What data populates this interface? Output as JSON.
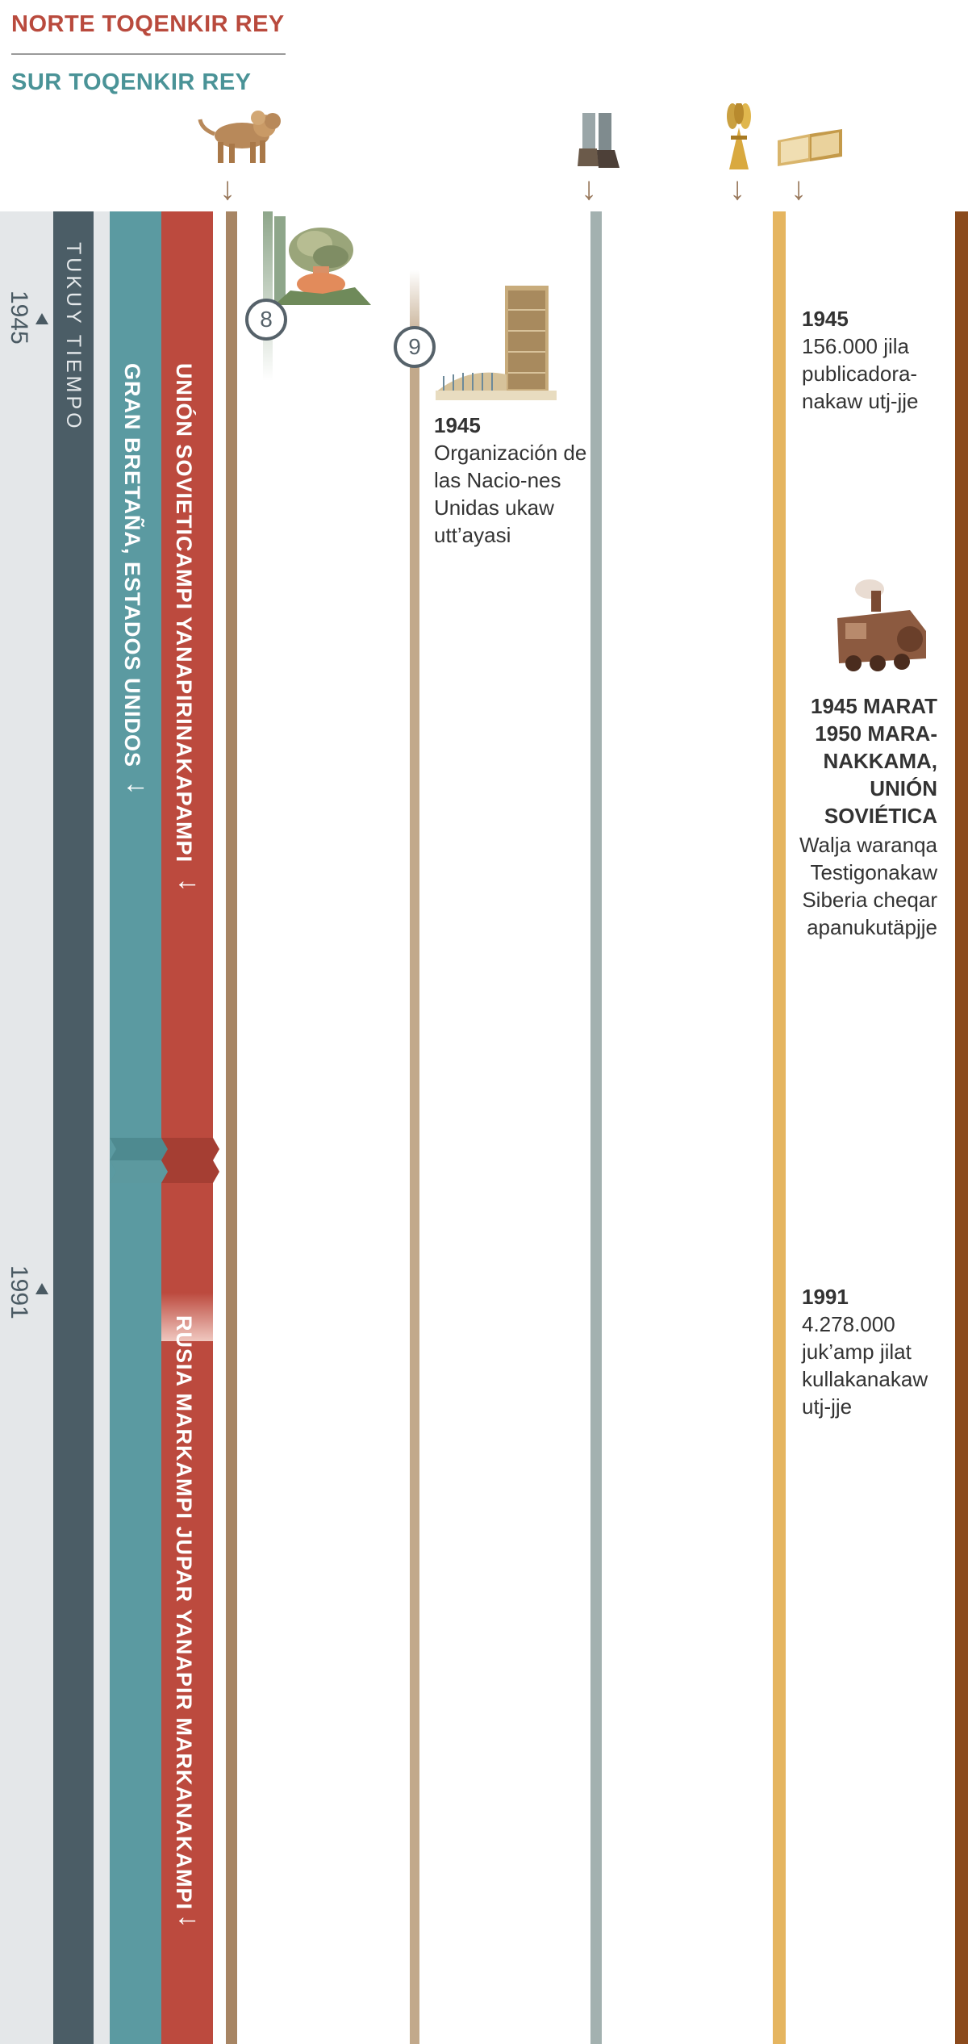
{
  "legend": {
    "north": "NORTE TOQENKIR REY",
    "south": "SUR TOQENKIR REY"
  },
  "timeline": {
    "axis_label": "TUKUY TIEMPO",
    "years": [
      "1945",
      "1991"
    ]
  },
  "bands": {
    "south": {
      "label": "GRAN BRETAÑA, ESTADOS UNIDOS",
      "arrow": "↓",
      "color": "#5b9aa1"
    },
    "north_1": {
      "label": "UNIÓN SOVIETICAMPI YANAPIRINAKAPAMPI",
      "arrow": "↓",
      "color": "#bc4a3e"
    },
    "north_2": {
      "label": "RUSIA MARKAMPI JUPAR YANAPIR MARKANAKAMPI",
      "arrow": "↓",
      "color": "#bc4a3e"
    }
  },
  "icons": [
    {
      "name": "lion-beast-icon"
    },
    {
      "name": "feet-icon"
    },
    {
      "name": "wheat-sheaf-icon"
    },
    {
      "name": "open-bible-icon"
    },
    {
      "name": "atomic-explosion-icon"
    },
    {
      "name": "united-nations-building-icon"
    },
    {
      "name": "steam-train-icon"
    }
  ],
  "markers": [
    {
      "number": "8"
    },
    {
      "number": "9"
    }
  ],
  "events": {
    "un": {
      "year": "1945",
      "text": "Organización de las Nacio-nes Unidas ukaw utt’ayasi"
    },
    "publishers_1945": {
      "year": "1945",
      "text": "156.000 jila publicadora-nakaw utj-jje"
    },
    "siberia": {
      "year": "1945 MARAT 1950 MARA-NAKKAMA, UNIÓN SOVIÉTICA",
      "text": "Walja waranqa Testigonakaw Siberia cheqar apanukutäpjje"
    },
    "publishers_1991": {
      "year": "1991",
      "text": "4.278.000 juk’amp jilat kullakanakaw utj-jje"
    }
  },
  "colors": {
    "north": "#b94a3d",
    "south": "#4a9397",
    "axis": "#4b5d66",
    "bg_panel": "#e4e7e9",
    "beast_line": "#a78564",
    "un_line": "#c2a98b",
    "feet_line": "#a3b1b0",
    "wheat_line": "#e5b560",
    "bible_line": "#8b4a1c"
  }
}
